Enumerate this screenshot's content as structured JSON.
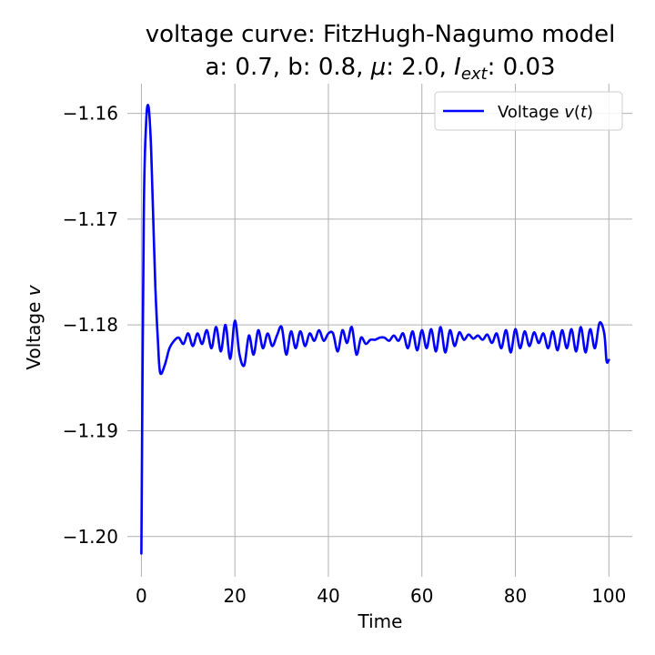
{
  "chart_data": {
    "type": "line",
    "title_line1": "voltage curve: FitzHugh-Nagumo model",
    "title_line2_parts": [
      "a: 0.7, b: 0.8, ",
      "μ",
      ": 2.0, ",
      "I",
      "ext",
      ": 0.03"
    ],
    "xlabel": "Time",
    "ylabel_parts": [
      "Voltage ",
      "v"
    ],
    "xlim": [
      -3,
      105
    ],
    "ylim": [
      -1.2038,
      -1.1572
    ],
    "x_ticks": [
      0,
      20,
      40,
      60,
      80,
      100
    ],
    "x_tick_labels": [
      "0",
      "20",
      "40",
      "60",
      "80",
      "100"
    ],
    "y_ticks": [
      -1.16,
      -1.17,
      -1.18,
      -1.19,
      -1.2
    ],
    "y_tick_labels": [
      "−1.16",
      "−1.17",
      "−1.18",
      "−1.19",
      "−1.20"
    ],
    "grid": true,
    "legend_placement": "top-right",
    "series": [
      {
        "name_parts": [
          "Voltage ",
          "v",
          "(",
          "t",
          ")"
        ],
        "color": "#0000ff",
        "x": [
          0,
          0.5,
          1,
          1.5,
          2,
          2.5,
          3,
          3.5,
          4,
          5,
          6,
          7,
          8,
          9,
          10,
          11,
          12,
          13,
          14,
          15,
          16,
          17,
          18,
          19,
          20,
          21,
          22,
          23,
          24,
          25,
          26,
          27,
          28,
          29,
          30,
          31,
          32,
          33,
          34,
          35,
          36,
          37,
          38,
          39,
          40,
          41,
          42,
          43,
          44,
          45,
          46,
          47,
          48,
          49,
          50,
          51,
          52,
          53,
          54,
          55,
          56,
          57,
          58,
          59,
          60,
          61,
          62,
          63,
          64,
          65,
          66,
          67,
          68,
          69,
          70,
          71,
          72,
          73,
          74,
          75,
          76,
          77,
          78,
          79,
          80,
          81,
          82,
          83,
          84,
          85,
          86,
          87,
          88,
          89,
          90,
          91,
          92,
          93,
          94,
          95,
          96,
          97,
          98,
          99,
          99.5,
          100
        ],
        "values": [
          -1.2016,
          -1.1702,
          -1.161,
          -1.1593,
          -1.1625,
          -1.1695,
          -1.1765,
          -1.1812,
          -1.1845,
          -1.1838,
          -1.1822,
          -1.1815,
          -1.1812,
          -1.1818,
          -1.1808,
          -1.182,
          -1.1808,
          -1.1818,
          -1.1805,
          -1.1822,
          -1.1802,
          -1.1825,
          -1.18,
          -1.1832,
          -1.1796,
          -1.1828,
          -1.1838,
          -1.181,
          -1.1828,
          -1.1805,
          -1.1822,
          -1.1808,
          -1.182,
          -1.181,
          -1.1802,
          -1.1828,
          -1.1806,
          -1.1822,
          -1.1806,
          -1.182,
          -1.1808,
          -1.1815,
          -1.1805,
          -1.1815,
          -1.1808,
          -1.1808,
          -1.1825,
          -1.1805,
          -1.1817,
          -1.1802,
          -1.1828,
          -1.1812,
          -1.1818,
          -1.1814,
          -1.1814,
          -1.1812,
          -1.1812,
          -1.1815,
          -1.181,
          -1.1815,
          -1.1808,
          -1.1822,
          -1.1806,
          -1.1824,
          -1.1805,
          -1.1822,
          -1.1804,
          -1.1825,
          -1.1802,
          -1.1826,
          -1.1805,
          -1.182,
          -1.1807,
          -1.1814,
          -1.1809,
          -1.1813,
          -1.181,
          -1.1814,
          -1.1809,
          -1.1817,
          -1.1808,
          -1.1822,
          -1.1805,
          -1.1826,
          -1.1804,
          -1.1822,
          -1.1806,
          -1.182,
          -1.1807,
          -1.1817,
          -1.1808,
          -1.1822,
          -1.1806,
          -1.1824,
          -1.1805,
          -1.1822,
          -1.1804,
          -1.1825,
          -1.1802,
          -1.1826,
          -1.1804,
          -1.1822,
          -1.1798,
          -1.1808,
          -1.1834,
          -1.1833
        ]
      }
    ]
  }
}
